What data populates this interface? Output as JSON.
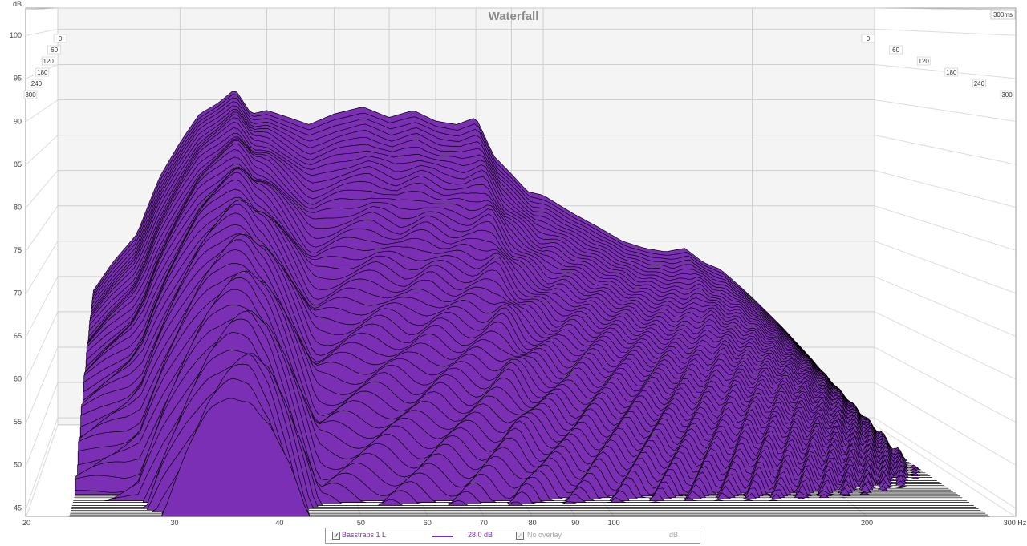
{
  "chart_data": {
    "type": "area",
    "title": "Waterfall",
    "ylabel": "dB",
    "xlabel": "Hz",
    "x_scale": "log",
    "xlim": [
      20,
      300
    ],
    "ylim": [
      44,
      103
    ],
    "yticks": [
      45,
      50,
      55,
      60,
      65,
      70,
      75,
      80,
      85,
      90,
      95,
      100
    ],
    "xticks": [
      20,
      30,
      40,
      50,
      60,
      70,
      80,
      90,
      100,
      200,
      300
    ],
    "xtick_labels": [
      "20",
      "30",
      "40",
      "50",
      "60",
      "70",
      "80",
      "90",
      "100",
      "200",
      "300 Hz"
    ],
    "time_axis_unit": "ms",
    "time_range_label": "300ms",
    "time_ticks": [
      "0",
      "60",
      "120",
      "180",
      "240",
      "300"
    ],
    "grid": true,
    "fill_color": "#7b2fb5",
    "outline_color": "#000000",
    "series": [
      {
        "name": "0 ms",
        "x": [
          22.5,
          24,
          26,
          28,
          30,
          32,
          34,
          36,
          38,
          40,
          43,
          46,
          50,
          55,
          60,
          65,
          70,
          75,
          80,
          85,
          90,
          95,
          100,
          110,
          120,
          130,
          140,
          150,
          160,
          170,
          180,
          190,
          200,
          220,
          240,
          260,
          280
        ],
        "y": [
          63,
          67,
          71,
          79,
          84,
          88,
          89.5,
          91.5,
          88,
          88.5,
          87.5,
          86.5,
          88,
          89,
          87.5,
          88.5,
          87,
          86.5,
          87.5,
          82,
          79.5,
          77,
          76.5,
          74,
          72,
          70,
          69,
          68.5,
          69,
          67,
          66,
          64,
          62,
          58,
          54,
          50,
          46
        ]
      },
      {
        "name": "300 ms",
        "x": [
          27,
          29,
          31,
          33,
          35,
          37,
          39,
          41,
          43,
          45
        ],
        "y": [
          44,
          52,
          58,
          63,
          66,
          67,
          64,
          58,
          51,
          44
        ]
      }
    ],
    "legend": [
      {
        "label": "Basstraps 1 L",
        "value": "28,0 dB",
        "checked": true
      },
      {
        "label": "No overlay",
        "value": "dB",
        "checked": true
      }
    ]
  }
}
